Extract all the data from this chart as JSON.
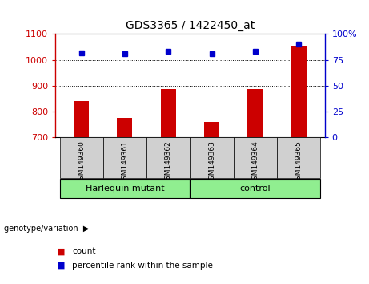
{
  "title": "GDS3365 / 1422450_at",
  "samples": [
    "GSM149360",
    "GSM149361",
    "GSM149362",
    "GSM149363",
    "GSM149364",
    "GSM149365"
  ],
  "counts": [
    840,
    775,
    885,
    760,
    885,
    1055
  ],
  "percentile_ranks": [
    82,
    81,
    83,
    81,
    83,
    90
  ],
  "ylim_left": [
    700,
    1100
  ],
  "ylim_right": [
    0,
    100
  ],
  "yticks_left": [
    700,
    800,
    900,
    1000,
    1100
  ],
  "yticks_right": [
    0,
    25,
    50,
    75,
    100
  ],
  "bar_color": "#cc0000",
  "dot_color": "#0000cc",
  "group1_label": "Harlequin mutant",
  "group2_label": "control",
  "group_color": "#90ee90",
  "tick_bg_color": "#d0d0d0",
  "group_label": "genotype/variation",
  "legend_count_label": "count",
  "legend_pct_label": "percentile rank within the sample",
  "background_color": "#ffffff",
  "left_axis_color": "#cc0000",
  "right_axis_color": "#0000cc",
  "bar_width": 0.35,
  "x_positions": [
    0,
    1,
    2,
    3,
    4,
    5
  ]
}
